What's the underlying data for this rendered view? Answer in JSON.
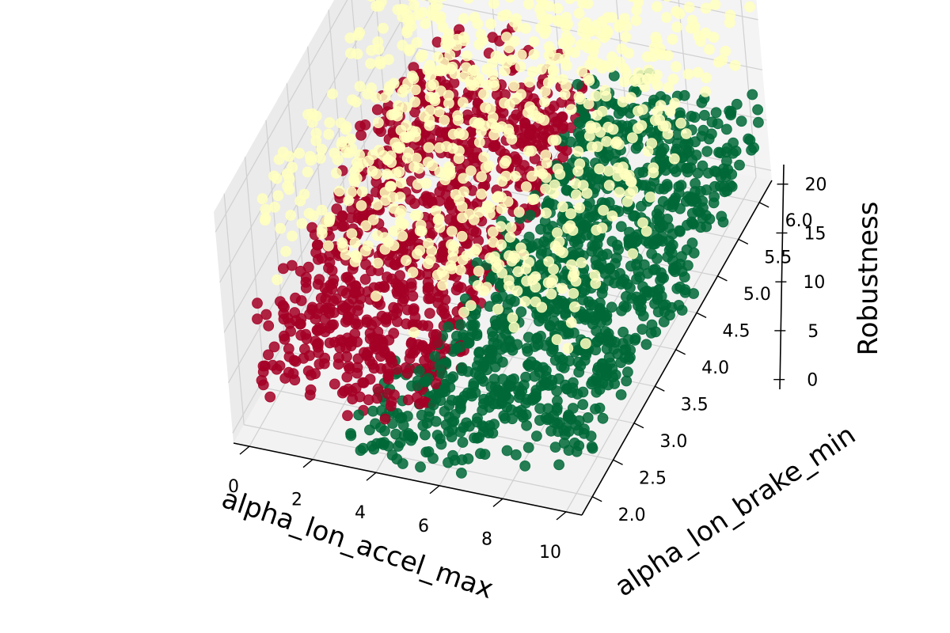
{
  "chart_data": {
    "type": "scatter",
    "projection": "3d",
    "title": "",
    "xlabel": "alpha_lon_accel_max",
    "ylabel": "alpha_lon_brake_min",
    "zlabel": "Robustness",
    "xlim": [
      -0.5,
      10.5
    ],
    "ylim": [
      1.75,
      6.3
    ],
    "zlim": [
      -1,
      22
    ],
    "x_ticks": [
      "0",
      "2",
      "4",
      "6",
      "8",
      "10"
    ],
    "y_ticks": [
      "2.0",
      "2.5",
      "3.0",
      "3.5",
      "4.0",
      "4.5",
      "5.0",
      "5.5",
      "6.0"
    ],
    "z_ticks": [
      "0",
      "5",
      "10",
      "15",
      "20"
    ],
    "grid": true,
    "legend": false,
    "colors": {
      "red": "#a50026",
      "green": "#006837",
      "yellow": "#ffffbf"
    },
    "series": [
      {
        "color": "#a50026",
        "regions": [
          {
            "x": [
              0,
              5.5
            ],
            "y": [
              1.9,
              6.1
            ],
            "z": [
              0,
              12
            ],
            "count": 1000
          }
        ]
      },
      {
        "color": "#006837",
        "regions": [
          {
            "x": [
              5.2,
              10.5
            ],
            "y": [
              1.9,
              6.2
            ],
            "z": [
              0,
              10
            ],
            "count": 1100
          },
          {
            "x": [
              3,
              7
            ],
            "y": [
              1.8,
              3
            ],
            "z": [
              -1,
              2
            ],
            "count": 120
          }
        ]
      },
      {
        "color": "#ffffbf",
        "regions": [
          {
            "x": [
              0,
              10.5
            ],
            "y": [
              2,
              6.2
            ],
            "z": [
              14,
              22
            ],
            "count": 700
          },
          {
            "x": [
              0,
              10.5
            ],
            "y": [
              2,
              6.2
            ],
            "z": [
              11,
              14
            ],
            "count": 90
          }
        ]
      }
    ]
  }
}
